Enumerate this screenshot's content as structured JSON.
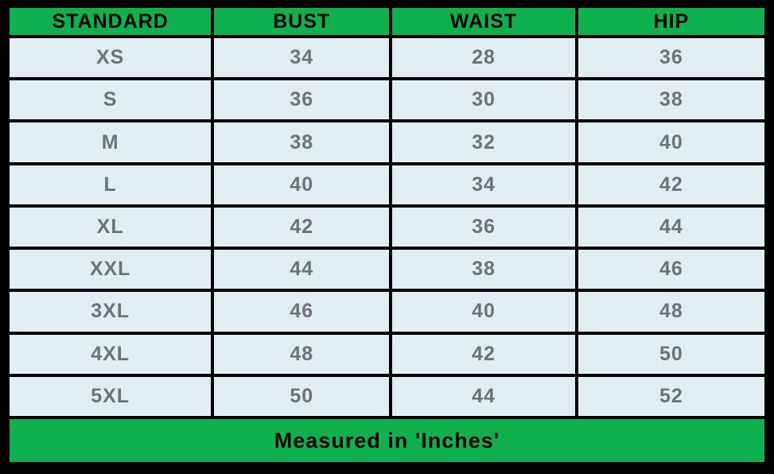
{
  "colors": {
    "header_bg": "#0fb04e",
    "footer_bg": "#0fb04e",
    "row_bg": "#e0edf3",
    "border": "#000000",
    "header_text": "#000000",
    "cell_text": "#6e7275"
  },
  "table": {
    "headers": [
      "STANDARD",
      "BUST",
      "WAIST",
      "HIP"
    ],
    "rows": [
      {
        "size": "XS",
        "bust": "34",
        "waist": "28",
        "hip": "36"
      },
      {
        "size": "S",
        "bust": "36",
        "waist": "30",
        "hip": "38"
      },
      {
        "size": "M",
        "bust": "38",
        "waist": "32",
        "hip": "40"
      },
      {
        "size": "L",
        "bust": "40",
        "waist": "34",
        "hip": "42"
      },
      {
        "size": "XL",
        "bust": "42",
        "waist": "36",
        "hip": "44"
      },
      {
        "size": "XXL",
        "bust": "44",
        "waist": "38",
        "hip": "46"
      },
      {
        "size": "3XL",
        "bust": "46",
        "waist": "40",
        "hip": "48"
      },
      {
        "size": "4XL",
        "bust": "48",
        "waist": "42",
        "hip": "50"
      },
      {
        "size": "5XL",
        "bust": "50",
        "waist": "44",
        "hip": "52"
      }
    ],
    "footer_note": "Measured in 'Inches'"
  },
  "chart_data": {
    "type": "table",
    "columns": [
      "STANDARD",
      "BUST",
      "WAIST",
      "HIP"
    ],
    "rows": [
      [
        "XS",
        34,
        28,
        36
      ],
      [
        "S",
        36,
        30,
        38
      ],
      [
        "M",
        38,
        32,
        40
      ],
      [
        "L",
        40,
        34,
        42
      ],
      [
        "XL",
        42,
        36,
        44
      ],
      [
        "XXL",
        44,
        38,
        46
      ],
      [
        "3XL",
        46,
        40,
        48
      ],
      [
        "4XL",
        48,
        42,
        50
      ],
      [
        "5XL",
        50,
        44,
        52
      ]
    ],
    "footer_note": "Measured in 'Inches'",
    "units": "inches"
  }
}
